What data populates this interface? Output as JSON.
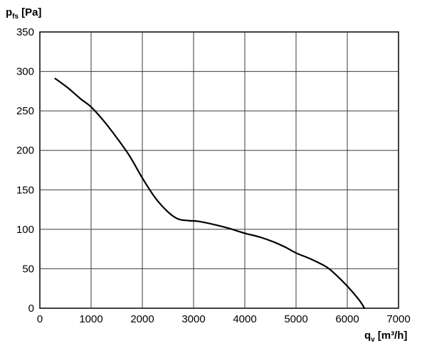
{
  "chart_data": {
    "type": "line",
    "title": "",
    "ylabel": {
      "symbol": "p",
      "subscript": "fs",
      "unit": "[Pa]"
    },
    "xlabel": {
      "symbol": "q",
      "subscript": "v",
      "unit": "[m³/h]"
    },
    "xlim": [
      0,
      7000
    ],
    "ylim": [
      0,
      350
    ],
    "x_ticks": [
      "0",
      "1000",
      "2000",
      "3000",
      "4000",
      "5000",
      "6000",
      "7000"
    ],
    "y_ticks": [
      "0",
      "50",
      "100",
      "150",
      "200",
      "250",
      "300",
      "350"
    ],
    "grid": true,
    "legend": false,
    "series": [
      {
        "color": "#000000",
        "points": [
          [
            300,
            291
          ],
          [
            550,
            279
          ],
          [
            800,
            265
          ],
          [
            1000,
            255
          ],
          [
            1250,
            237
          ],
          [
            1500,
            216
          ],
          [
            1750,
            193
          ],
          [
            2000,
            165
          ],
          [
            2250,
            140
          ],
          [
            2500,
            122
          ],
          [
            2700,
            113
          ],
          [
            2900,
            111
          ],
          [
            3100,
            110
          ],
          [
            3400,
            106
          ],
          [
            3700,
            101
          ],
          [
            4000,
            95
          ],
          [
            4300,
            90
          ],
          [
            4600,
            83
          ],
          [
            4800,
            77
          ],
          [
            5000,
            70
          ],
          [
            5300,
            62
          ],
          [
            5600,
            52
          ],
          [
            5800,
            41
          ],
          [
            6000,
            28
          ],
          [
            6200,
            13
          ],
          [
            6300,
            4
          ],
          [
            6330,
            0
          ]
        ]
      }
    ]
  }
}
